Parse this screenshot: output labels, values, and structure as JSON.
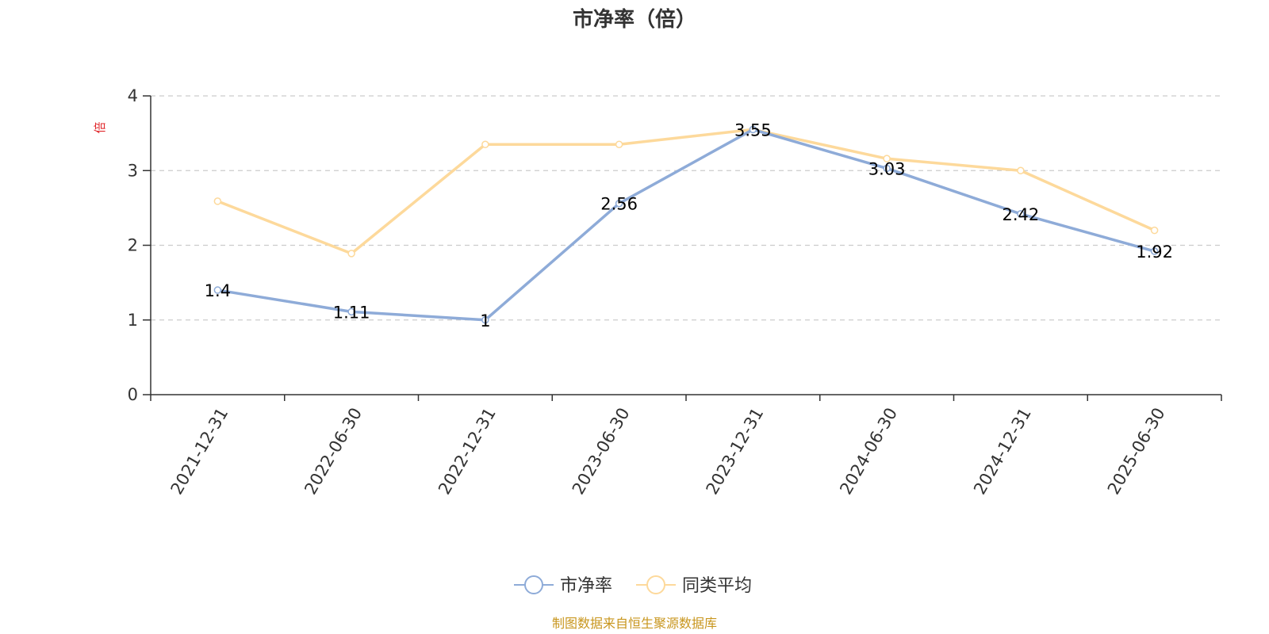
{
  "chart_data": {
    "type": "line",
    "title": "市净率（倍）",
    "ylabel": "倍",
    "xlabel": "",
    "categories": [
      "2021-12-31",
      "2022-06-30",
      "2022-12-31",
      "2023-06-30",
      "2023-12-31",
      "2024-06-30",
      "2024-12-31",
      "2025-06-30"
    ],
    "series": [
      {
        "name": "市净率",
        "values": [
          1.4,
          1.11,
          1,
          2.56,
          3.55,
          3.03,
          2.42,
          1.92
        ],
        "labels": [
          "1.4",
          "1.11",
          "1",
          "2.56",
          "3.55",
          "3.03",
          "2.42",
          "1.92"
        ],
        "color": "#8eabd8",
        "show_labels": true
      },
      {
        "name": "同类平均",
        "values": [
          2.59,
          1.89,
          3.35,
          3.35,
          3.55,
          3.16,
          3.0,
          2.2
        ],
        "color": "#fdd99b",
        "show_labels": false
      }
    ],
    "yticks": [
      "0",
      "1",
      "2",
      "3",
      "4"
    ],
    "ylim": [
      0,
      4
    ],
    "grid": true,
    "grid_style": "dashed",
    "legend_position": "bottom-center",
    "source": "制图数据来自恒生聚源数据库"
  }
}
